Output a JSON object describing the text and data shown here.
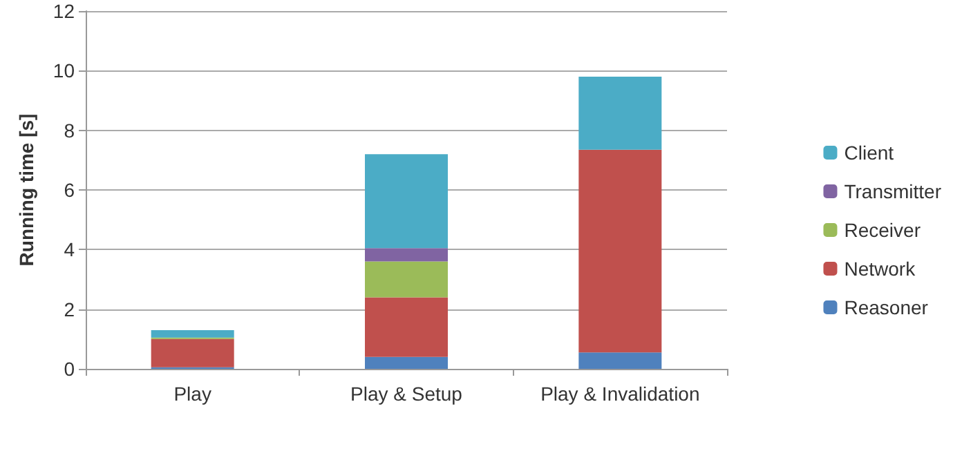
{
  "chart_data": {
    "type": "bar",
    "stacked": true,
    "ylabel": "Running time [s]",
    "categories": [
      "Play",
      "Play & Setup",
      "Play & Invalidation"
    ],
    "series": [
      {
        "name": "Reasoner",
        "color": "#4f81bd",
        "values": [
          0.05,
          0.4,
          0.55
        ]
      },
      {
        "name": "Network",
        "color": "#c0504d",
        "values": [
          0.95,
          2.0,
          6.8
        ]
      },
      {
        "name": "Receiver",
        "color": "#9bbb59",
        "values": [
          0.05,
          1.2,
          0
        ]
      },
      {
        "name": "Transmitter",
        "color": "#8064a2",
        "values": [
          0,
          0.45,
          0
        ]
      },
      {
        "name": "Client",
        "color": "#4bacc6",
        "values": [
          0.25,
          3.15,
          2.45
        ]
      }
    ],
    "ylim": [
      0,
      12
    ],
    "yticks": [
      0,
      2,
      4,
      6,
      8,
      10,
      12
    ],
    "grid": "y",
    "legend": "right"
  }
}
